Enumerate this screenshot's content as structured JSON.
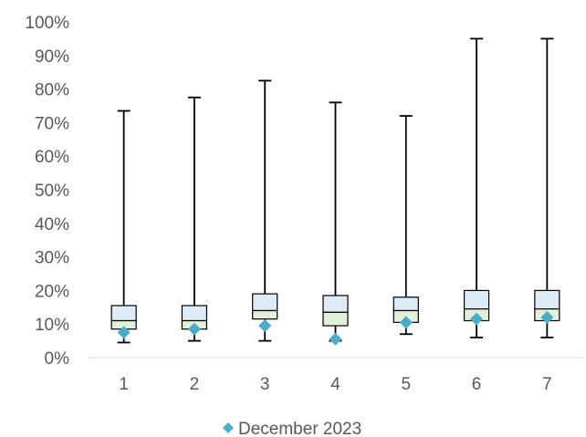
{
  "chart_data": {
    "type": "box",
    "categories": [
      "1",
      "2",
      "3",
      "4",
      "5",
      "6",
      "7"
    ],
    "y_ticks": [
      "0%",
      "10%",
      "20%",
      "30%",
      "40%",
      "50%",
      "60%",
      "70%",
      "80%",
      "90%",
      "100%"
    ],
    "ylim": [
      0,
      100
    ],
    "unit": "%",
    "series": [
      {
        "name": "",
        "type": "box",
        "min": [
          4.5,
          5,
          5,
          5,
          7,
          6,
          6
        ],
        "q1": [
          8.5,
          8.5,
          11.5,
          9.5,
          10.5,
          11,
          11
        ],
        "median": [
          11,
          11,
          14,
          13.5,
          14,
          14.5,
          14.5
        ],
        "q3": [
          15.5,
          15.5,
          19,
          18.5,
          18,
          20,
          20
        ],
        "max": [
          73.5,
          77.5,
          82.5,
          76,
          72,
          95,
          95
        ]
      },
      {
        "name": "December 2023",
        "type": "scatter",
        "marker": "diamond",
        "values": [
          7.5,
          8.5,
          9.5,
          5.5,
          10.5,
          11.5,
          12
        ]
      }
    ],
    "legend": {
      "position": "bottom",
      "entries": [
        "December 2023"
      ]
    },
    "grid": false,
    "colors": {
      "lower_box": "#e2f0d9",
      "upper_box": "#ddebf7",
      "box_border": "#000000",
      "whisker": "#000000",
      "marker": "#4bacc6",
      "axis": "#d9d9d9",
      "text": "#595959"
    }
  }
}
